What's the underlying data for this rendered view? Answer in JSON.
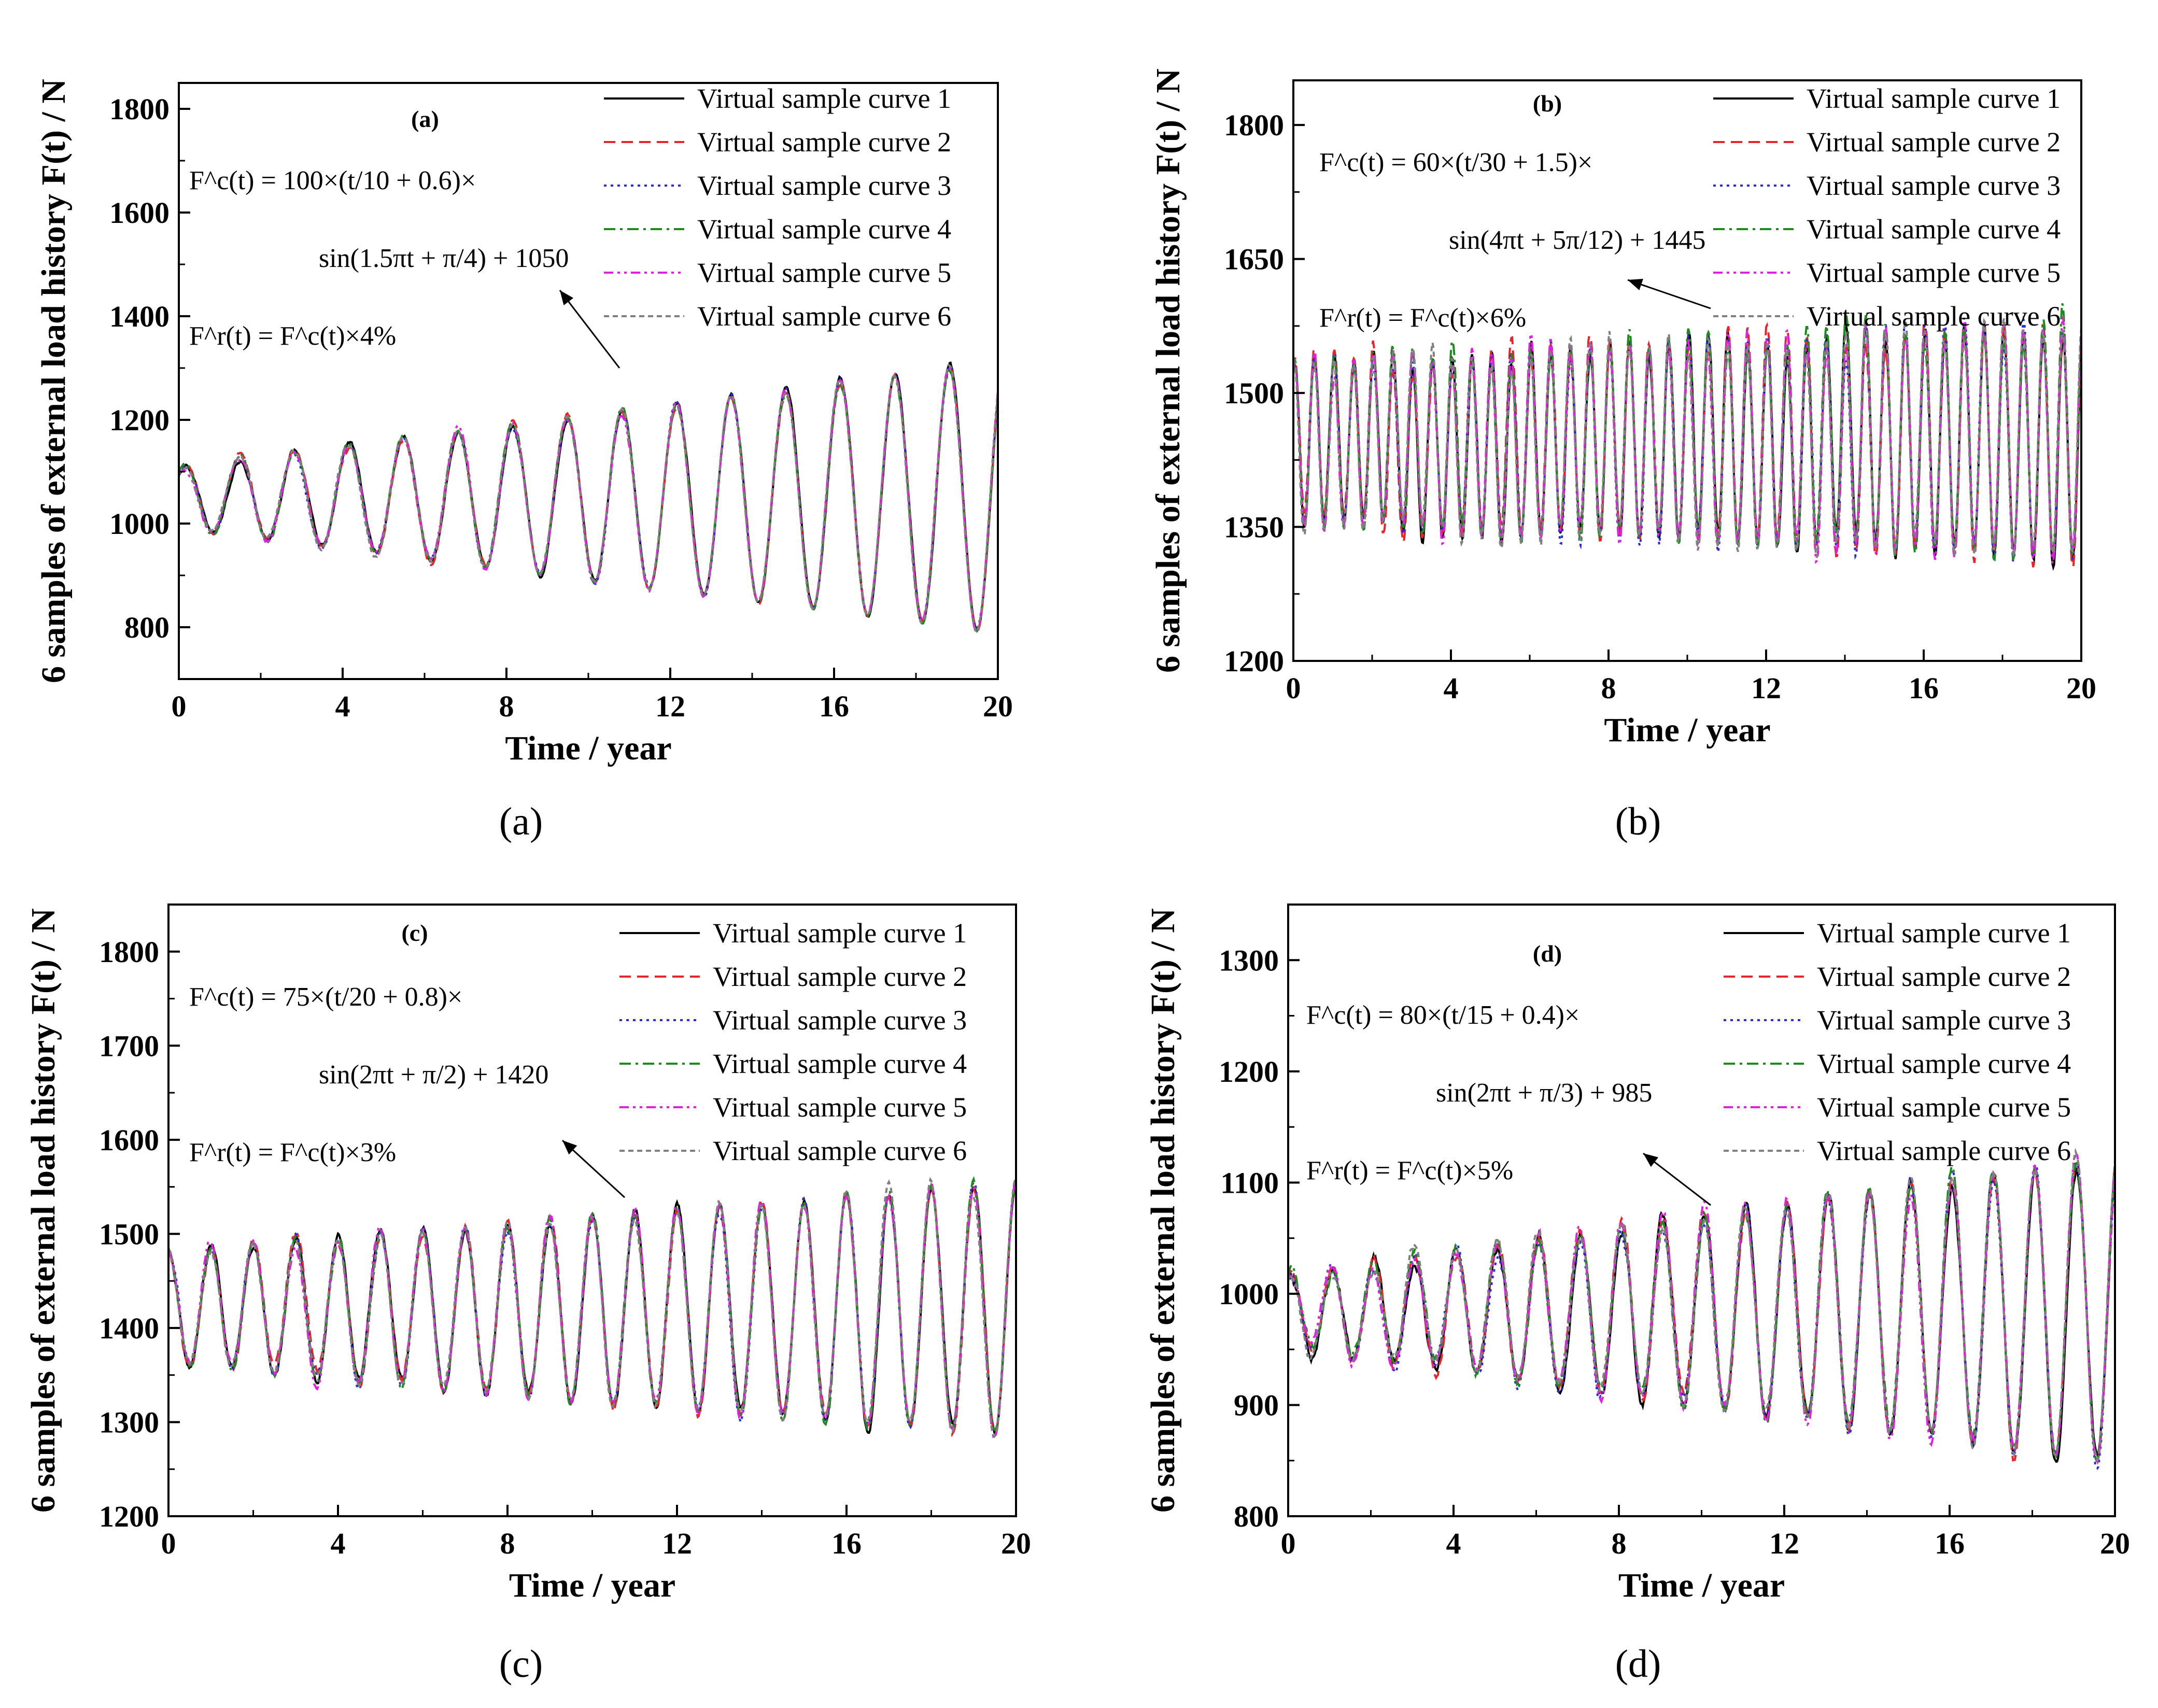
{
  "figure": {
    "captions": [
      "(a)",
      "(b)",
      "(c)",
      "(d)"
    ]
  },
  "legend_labels": [
    "Virtual sample curve 1",
    "Virtual sample curve 2",
    "Virtual sample curve 3",
    "Virtual sample curve 4",
    "Virtual sample curve 5",
    "Virtual sample curve 6"
  ],
  "series_colors": [
    "#000000",
    "#e8242b",
    "#2b2bd6",
    "#1e8a1e",
    "#e020e0",
    "#808080"
  ],
  "chart_data": [
    {
      "type": "line",
      "panel_label": "(a)",
      "xlabel": "Time / year",
      "ylabel": "6 samples of external load history F(t) / N",
      "xlim": [
        0,
        20
      ],
      "ylim": [
        700,
        1850
      ],
      "xticks": [
        0,
        4,
        8,
        12,
        16,
        20
      ],
      "yticks": [
        800,
        1000,
        1200,
        1400,
        1600,
        1800
      ],
      "legend_position": "top-right",
      "formula": {
        "line1": "F^c(t) = 100×(t/10 + 0.6)×",
        "line2": "sin(1.5πt + π/4) + 1050",
        "line3": "F^r(t) = F^c(t)×4%"
      },
      "generator": {
        "amp": 100,
        "div": 10,
        "off": 0.6,
        "omega_pi": 1.5,
        "phase_pi": 0.25,
        "mean": 1050,
        "noise_pct": 4
      },
      "series": [
        {
          "name": "Virtual sample curve 1",
          "style": "solid"
        },
        {
          "name": "Virtual sample curve 2",
          "style": "dashed"
        },
        {
          "name": "Virtual sample curve 3",
          "style": "dotted"
        },
        {
          "name": "Virtual sample curve 4",
          "style": "dashdot"
        },
        {
          "name": "Virtual sample curve 5",
          "style": "dashdotdot"
        },
        {
          "name": "Virtual sample curve 6",
          "style": "shortdash"
        }
      ]
    },
    {
      "type": "line",
      "panel_label": "(b)",
      "xlabel": "Time / year",
      "ylabel": "6 samples of external load history F(t) / N",
      "xlim": [
        0,
        20
      ],
      "ylim": [
        1200,
        1850
      ],
      "xticks": [
        0,
        4,
        8,
        12,
        16,
        20
      ],
      "yticks": [
        1200,
        1350,
        1500,
        1650,
        1800
      ],
      "legend_position": "top-right",
      "formula": {
        "line1": "F^c(t) = 60×(t/30 + 1.5)×",
        "line2": "sin(4πt + 5π/12) + 1445",
        "line3": "F^r(t) = F^c(t)×6%"
      },
      "generator": {
        "amp": 60,
        "div": 30,
        "off": 1.5,
        "omega_pi": 4,
        "phase_pi": 0.4167,
        "mean": 1445,
        "noise_pct": 6
      },
      "series": [
        {
          "name": "Virtual sample curve 1",
          "style": "solid"
        },
        {
          "name": "Virtual sample curve 2",
          "style": "dashed"
        },
        {
          "name": "Virtual sample curve 3",
          "style": "dotted"
        },
        {
          "name": "Virtual sample curve 4",
          "style": "dashdot"
        },
        {
          "name": "Virtual sample curve 5",
          "style": "dashdotdot"
        },
        {
          "name": "Virtual sample curve 6",
          "style": "shortdash"
        }
      ]
    },
    {
      "type": "line",
      "panel_label": "(c)",
      "xlabel": "Time / year",
      "ylabel": "6 samples of external load history F(t) / N",
      "xlim": [
        0,
        20
      ],
      "ylim": [
        1200,
        1850
      ],
      "xticks": [
        0,
        4,
        8,
        12,
        16,
        20
      ],
      "yticks": [
        1200,
        1300,
        1400,
        1500,
        1600,
        1700,
        1800
      ],
      "legend_position": "top-right",
      "formula": {
        "line1": "F^c(t) = 75×(t/20 + 0.8)×",
        "line2": "sin(2πt + π/2) + 1420",
        "line3": "F^r(t) = F^c(t)×3%"
      },
      "generator": {
        "amp": 75,
        "div": 20,
        "off": 0.8,
        "omega_pi": 2,
        "phase_pi": 0.5,
        "mean": 1420,
        "noise_pct": 3
      },
      "series": [
        {
          "name": "Virtual sample curve 1",
          "style": "solid"
        },
        {
          "name": "Virtual sample curve 2",
          "style": "dashed"
        },
        {
          "name": "Virtual sample curve 3",
          "style": "dotted"
        },
        {
          "name": "Virtual sample curve 4",
          "style": "dashdot"
        },
        {
          "name": "Virtual sample curve 5",
          "style": "dashdotdot"
        },
        {
          "name": "Virtual sample curve 6",
          "style": "shortdash"
        }
      ]
    },
    {
      "type": "line",
      "panel_label": "(d)",
      "xlabel": "Time / year",
      "ylabel": "6 samples of external load history F(t) / N",
      "xlim": [
        0,
        20
      ],
      "ylim": [
        800,
        1350
      ],
      "xticks": [
        0,
        4,
        8,
        12,
        16,
        20
      ],
      "yticks": [
        800,
        900,
        1000,
        1100,
        1200,
        1300
      ],
      "legend_position": "top-right",
      "formula": {
        "line1": "F^c(t) = 80×(t/15 + 0.4)×",
        "line2": "sin(2πt + π/3) + 985",
        "line3": "F^r(t) = F^c(t)×5%"
      },
      "generator": {
        "amp": 80,
        "div": 15,
        "off": 0.4,
        "omega_pi": 2,
        "phase_pi": 0.3333,
        "mean": 985,
        "noise_pct": 5
      },
      "series": [
        {
          "name": "Virtual sample curve 1",
          "style": "solid"
        },
        {
          "name": "Virtual sample curve 2",
          "style": "dashed"
        },
        {
          "name": "Virtual sample curve 3",
          "style": "dotted"
        },
        {
          "name": "Virtual sample curve 4",
          "style": "dashdot"
        },
        {
          "name": "Virtual sample curve 5",
          "style": "dashdotdot"
        },
        {
          "name": "Virtual sample curve 6",
          "style": "shortdash"
        }
      ]
    }
  ]
}
